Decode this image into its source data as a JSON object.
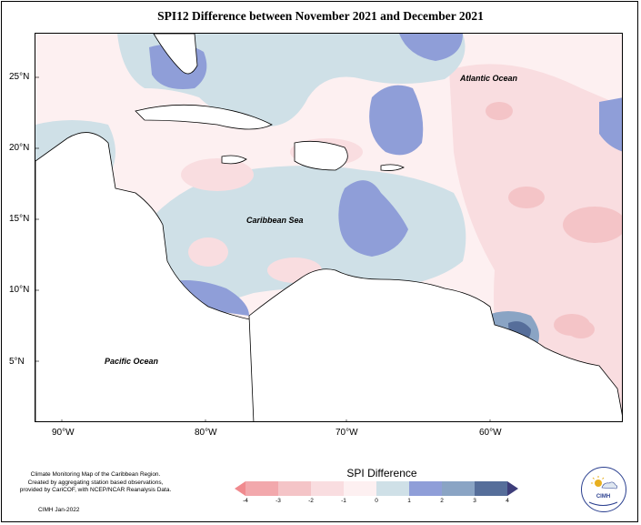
{
  "title": "SPI12 Difference between November 2021 and December 2021",
  "map": {
    "latitude_labels": [
      "25°N",
      "20°N",
      "15°N",
      "10°N",
      "5°N"
    ],
    "longitude_labels": [
      "90°W",
      "80°W",
      "70°W",
      "60°W"
    ],
    "places": {
      "atlantic": "Atlantic Ocean",
      "caribbean": "Caribbean Sea",
      "pacific": "Pacific Ocean"
    },
    "colors": {
      "land": "#ffffff",
      "neg4": "#f08a8e",
      "neg3": "#f2a8ac",
      "neg2": "#f4c4c7",
      "neg1": "#f9dde0",
      "zero_neg": "#fdf0f1",
      "zero_pos": "#cfe0e7",
      "pos1": "#8f9ed8",
      "pos2": "#8aa4c4",
      "pos3": "#566e9a",
      "pos4": "#3d3d7a"
    }
  },
  "legend": {
    "title": "SPI Difference",
    "ticks": [
      "-4",
      "-3",
      "-2",
      "-1",
      "0",
      "1",
      "2",
      "3",
      "4"
    ],
    "colors": [
      "#f08a8e",
      "#f2a8ac",
      "#f4c4c7",
      "#f9dde0",
      "#fdf0f1",
      "#cfe0e7",
      "#8f9ed8",
      "#8aa4c4",
      "#566e9a",
      "#3d3d7a"
    ]
  },
  "credit": {
    "line1": "Climate Monitoring Map of the Caribbean Region.",
    "line2": "Created by aggregating station based observations,",
    "line3": "provided by CariCOF, with NCEP/NCAR Reanalysis Data.",
    "stamp": "CIMH Jan-2022"
  },
  "logo": {
    "text": "CIMH"
  }
}
